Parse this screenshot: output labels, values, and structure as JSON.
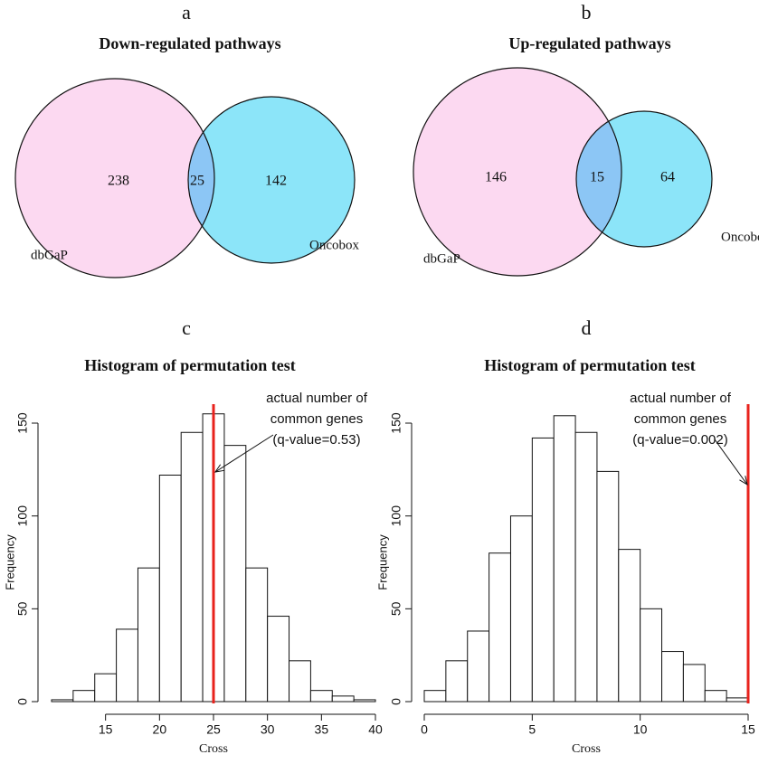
{
  "chart_data": [
    {
      "type": "venn",
      "label": "a",
      "title": "Down-regulated pathways",
      "sets": [
        {
          "name": "dbGaP",
          "color": "#fcd9f1"
        },
        {
          "name": "Oncobox",
          "color": "#8ce5f9"
        }
      ],
      "values": [
        238,
        25,
        142
      ],
      "overlap_color": "#8cc6f5"
    },
    {
      "type": "venn",
      "label": "b",
      "title": "Up-regulated pathways",
      "sets": [
        {
          "name": "dbGaP",
          "color": "#fcd9f1"
        },
        {
          "name": "Oncobox",
          "color": "#8ce5f9"
        }
      ],
      "values": [
        146,
        15,
        64
      ],
      "overlap_color": "#8cc6f5"
    },
    {
      "type": "histogram",
      "label": "c",
      "title": "Histogram of permutation test",
      "x_label": "Cross",
      "y_label": "Frequency",
      "bins": [
        10,
        12,
        14,
        16,
        18,
        20,
        22,
        24,
        26,
        28,
        30,
        32,
        34,
        36,
        38,
        40
      ],
      "values": [
        1,
        6,
        15,
        39,
        72,
        122,
        145,
        155,
        138,
        72,
        46,
        22,
        6,
        3,
        1
      ],
      "color": "#ffffff",
      "xlim": [
        10,
        40
      ],
      "xticks": [
        15,
        20,
        25,
        30,
        35,
        40
      ],
      "ylim": [
        0,
        150
      ],
      "yticks": [
        0,
        50,
        100,
        150
      ],
      "vline": {
        "value": 25,
        "color": "#e8221c"
      },
      "annotation": [
        "actual number of",
        "common genes",
        "(q-value=0.53)"
      ]
    },
    {
      "type": "histogram",
      "label": "d",
      "title": "Histogram of permutation test",
      "x_label": "Cross",
      "y_label": "Frequency",
      "bins": [
        0,
        1,
        2,
        3,
        4,
        5,
        6,
        7,
        8,
        9,
        10,
        11,
        12,
        13,
        14,
        15
      ],
      "values": [
        6,
        22,
        38,
        80,
        100,
        142,
        154,
        145,
        124,
        82,
        50,
        27,
        20,
        6,
        2
      ],
      "color": "#ffffff",
      "xlim": [
        0,
        15
      ],
      "xticks": [
        0,
        5,
        10,
        15
      ],
      "ylim": [
        0,
        150
      ],
      "yticks": [
        0,
        50,
        100,
        150
      ],
      "vline": {
        "value": 15,
        "color": "#e8221c"
      },
      "annotation": [
        "actual number of",
        "common genes",
        "(q-value=0.002)"
      ]
    }
  ]
}
